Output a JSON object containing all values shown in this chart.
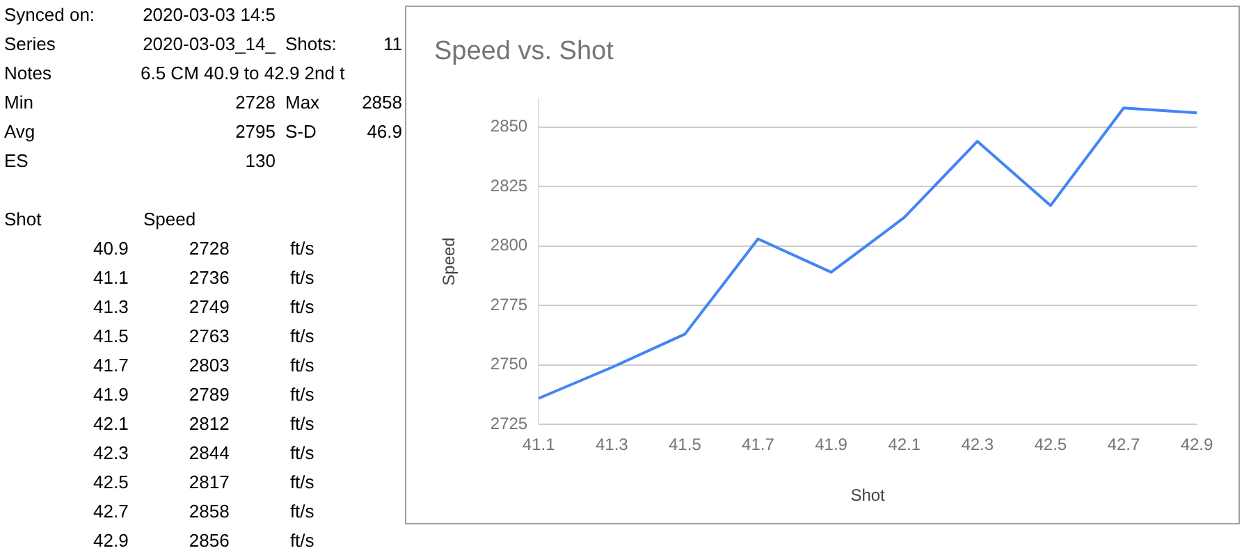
{
  "chart_data": [
    {
      "type": "other",
      "annotations": [
        "Synced on:",
        "2020-03-03 14:5",
        "Series",
        "2020-03-03_14_",
        "Shots:",
        "11",
        "Notes",
        "6.5 CM 40.9 to 42.9 2nd t",
        "Min",
        "2728",
        "Max",
        "2858",
        "Avg",
        "2795",
        "S-D",
        "46.9",
        "ES",
        "130",
        "Shot",
        "Speed",
        "40.9 2728 ft/s",
        "41.1 2736 ft/s",
        "41.3 2749 ft/s",
        "41.5 2763 ft/s",
        "41.7 2803 ft/s",
        "41.9 2789 ft/s",
        "42.1 2812 ft/s",
        "42.3 2844 ft/s",
        "42.5 2817 ft/s",
        "42.7 2858 ft/s",
        "42.9 2856 ft/s"
      ]
    },
    {
      "type": "line",
      "title": "Speed vs. Shot",
      "xlabel": "Shot",
      "ylabel": "Speed",
      "categories": [
        "41.1",
        "41.3",
        "41.5",
        "41.7",
        "41.9",
        "42.1",
        "42.3",
        "42.5",
        "42.7",
        "42.9"
      ],
      "series": [
        {
          "color": "#4285f4",
          "values": [
            2736,
            2749,
            2763,
            2803,
            2789,
            2812,
            2844,
            2817,
            2858,
            2856
          ]
        }
      ],
      "ylim": [
        2725,
        2862
      ],
      "yticks": [
        2725,
        2750,
        2775,
        2800,
        2825,
        2850
      ],
      "grid": "y",
      "legend": false,
      "marker": "none",
      "line_style": "solid"
    }
  ]
}
